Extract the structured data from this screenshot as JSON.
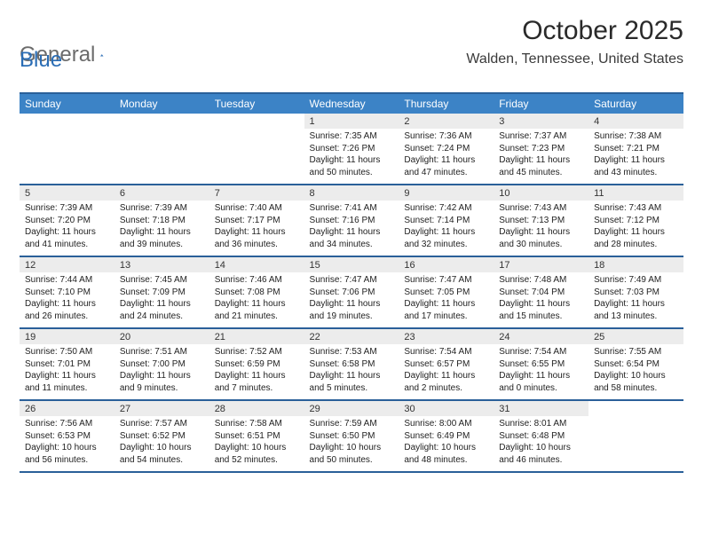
{
  "logo": {
    "word1": "General",
    "word2": "Blue"
  },
  "title": "October 2025",
  "location": "Walden, Tennessee, United States",
  "header_color": "#3c83c6",
  "row_border_color": "#2a6099",
  "daynum_bg": "#ececec",
  "days_of_week": [
    "Sunday",
    "Monday",
    "Tuesday",
    "Wednesday",
    "Thursday",
    "Friday",
    "Saturday"
  ],
  "weeks": [
    [
      {
        "n": "",
        "sr": "",
        "ss": "",
        "dl": ""
      },
      {
        "n": "",
        "sr": "",
        "ss": "",
        "dl": ""
      },
      {
        "n": "",
        "sr": "",
        "ss": "",
        "dl": ""
      },
      {
        "n": "1",
        "sr": "Sunrise: 7:35 AM",
        "ss": "Sunset: 7:26 PM",
        "dl": "Daylight: 11 hours and 50 minutes."
      },
      {
        "n": "2",
        "sr": "Sunrise: 7:36 AM",
        "ss": "Sunset: 7:24 PM",
        "dl": "Daylight: 11 hours and 47 minutes."
      },
      {
        "n": "3",
        "sr": "Sunrise: 7:37 AM",
        "ss": "Sunset: 7:23 PM",
        "dl": "Daylight: 11 hours and 45 minutes."
      },
      {
        "n": "4",
        "sr": "Sunrise: 7:38 AM",
        "ss": "Sunset: 7:21 PM",
        "dl": "Daylight: 11 hours and 43 minutes."
      }
    ],
    [
      {
        "n": "5",
        "sr": "Sunrise: 7:39 AM",
        "ss": "Sunset: 7:20 PM",
        "dl": "Daylight: 11 hours and 41 minutes."
      },
      {
        "n": "6",
        "sr": "Sunrise: 7:39 AM",
        "ss": "Sunset: 7:18 PM",
        "dl": "Daylight: 11 hours and 39 minutes."
      },
      {
        "n": "7",
        "sr": "Sunrise: 7:40 AM",
        "ss": "Sunset: 7:17 PM",
        "dl": "Daylight: 11 hours and 36 minutes."
      },
      {
        "n": "8",
        "sr": "Sunrise: 7:41 AM",
        "ss": "Sunset: 7:16 PM",
        "dl": "Daylight: 11 hours and 34 minutes."
      },
      {
        "n": "9",
        "sr": "Sunrise: 7:42 AM",
        "ss": "Sunset: 7:14 PM",
        "dl": "Daylight: 11 hours and 32 minutes."
      },
      {
        "n": "10",
        "sr": "Sunrise: 7:43 AM",
        "ss": "Sunset: 7:13 PM",
        "dl": "Daylight: 11 hours and 30 minutes."
      },
      {
        "n": "11",
        "sr": "Sunrise: 7:43 AM",
        "ss": "Sunset: 7:12 PM",
        "dl": "Daylight: 11 hours and 28 minutes."
      }
    ],
    [
      {
        "n": "12",
        "sr": "Sunrise: 7:44 AM",
        "ss": "Sunset: 7:10 PM",
        "dl": "Daylight: 11 hours and 26 minutes."
      },
      {
        "n": "13",
        "sr": "Sunrise: 7:45 AM",
        "ss": "Sunset: 7:09 PM",
        "dl": "Daylight: 11 hours and 24 minutes."
      },
      {
        "n": "14",
        "sr": "Sunrise: 7:46 AM",
        "ss": "Sunset: 7:08 PM",
        "dl": "Daylight: 11 hours and 21 minutes."
      },
      {
        "n": "15",
        "sr": "Sunrise: 7:47 AM",
        "ss": "Sunset: 7:06 PM",
        "dl": "Daylight: 11 hours and 19 minutes."
      },
      {
        "n": "16",
        "sr": "Sunrise: 7:47 AM",
        "ss": "Sunset: 7:05 PM",
        "dl": "Daylight: 11 hours and 17 minutes."
      },
      {
        "n": "17",
        "sr": "Sunrise: 7:48 AM",
        "ss": "Sunset: 7:04 PM",
        "dl": "Daylight: 11 hours and 15 minutes."
      },
      {
        "n": "18",
        "sr": "Sunrise: 7:49 AM",
        "ss": "Sunset: 7:03 PM",
        "dl": "Daylight: 11 hours and 13 minutes."
      }
    ],
    [
      {
        "n": "19",
        "sr": "Sunrise: 7:50 AM",
        "ss": "Sunset: 7:01 PM",
        "dl": "Daylight: 11 hours and 11 minutes."
      },
      {
        "n": "20",
        "sr": "Sunrise: 7:51 AM",
        "ss": "Sunset: 7:00 PM",
        "dl": "Daylight: 11 hours and 9 minutes."
      },
      {
        "n": "21",
        "sr": "Sunrise: 7:52 AM",
        "ss": "Sunset: 6:59 PM",
        "dl": "Daylight: 11 hours and 7 minutes."
      },
      {
        "n": "22",
        "sr": "Sunrise: 7:53 AM",
        "ss": "Sunset: 6:58 PM",
        "dl": "Daylight: 11 hours and 5 minutes."
      },
      {
        "n": "23",
        "sr": "Sunrise: 7:54 AM",
        "ss": "Sunset: 6:57 PM",
        "dl": "Daylight: 11 hours and 2 minutes."
      },
      {
        "n": "24",
        "sr": "Sunrise: 7:54 AM",
        "ss": "Sunset: 6:55 PM",
        "dl": "Daylight: 11 hours and 0 minutes."
      },
      {
        "n": "25",
        "sr": "Sunrise: 7:55 AM",
        "ss": "Sunset: 6:54 PM",
        "dl": "Daylight: 10 hours and 58 minutes."
      }
    ],
    [
      {
        "n": "26",
        "sr": "Sunrise: 7:56 AM",
        "ss": "Sunset: 6:53 PM",
        "dl": "Daylight: 10 hours and 56 minutes."
      },
      {
        "n": "27",
        "sr": "Sunrise: 7:57 AM",
        "ss": "Sunset: 6:52 PM",
        "dl": "Daylight: 10 hours and 54 minutes."
      },
      {
        "n": "28",
        "sr": "Sunrise: 7:58 AM",
        "ss": "Sunset: 6:51 PM",
        "dl": "Daylight: 10 hours and 52 minutes."
      },
      {
        "n": "29",
        "sr": "Sunrise: 7:59 AM",
        "ss": "Sunset: 6:50 PM",
        "dl": "Daylight: 10 hours and 50 minutes."
      },
      {
        "n": "30",
        "sr": "Sunrise: 8:00 AM",
        "ss": "Sunset: 6:49 PM",
        "dl": "Daylight: 10 hours and 48 minutes."
      },
      {
        "n": "31",
        "sr": "Sunrise: 8:01 AM",
        "ss": "Sunset: 6:48 PM",
        "dl": "Daylight: 10 hours and 46 minutes."
      },
      {
        "n": "",
        "sr": "",
        "ss": "",
        "dl": ""
      }
    ]
  ]
}
